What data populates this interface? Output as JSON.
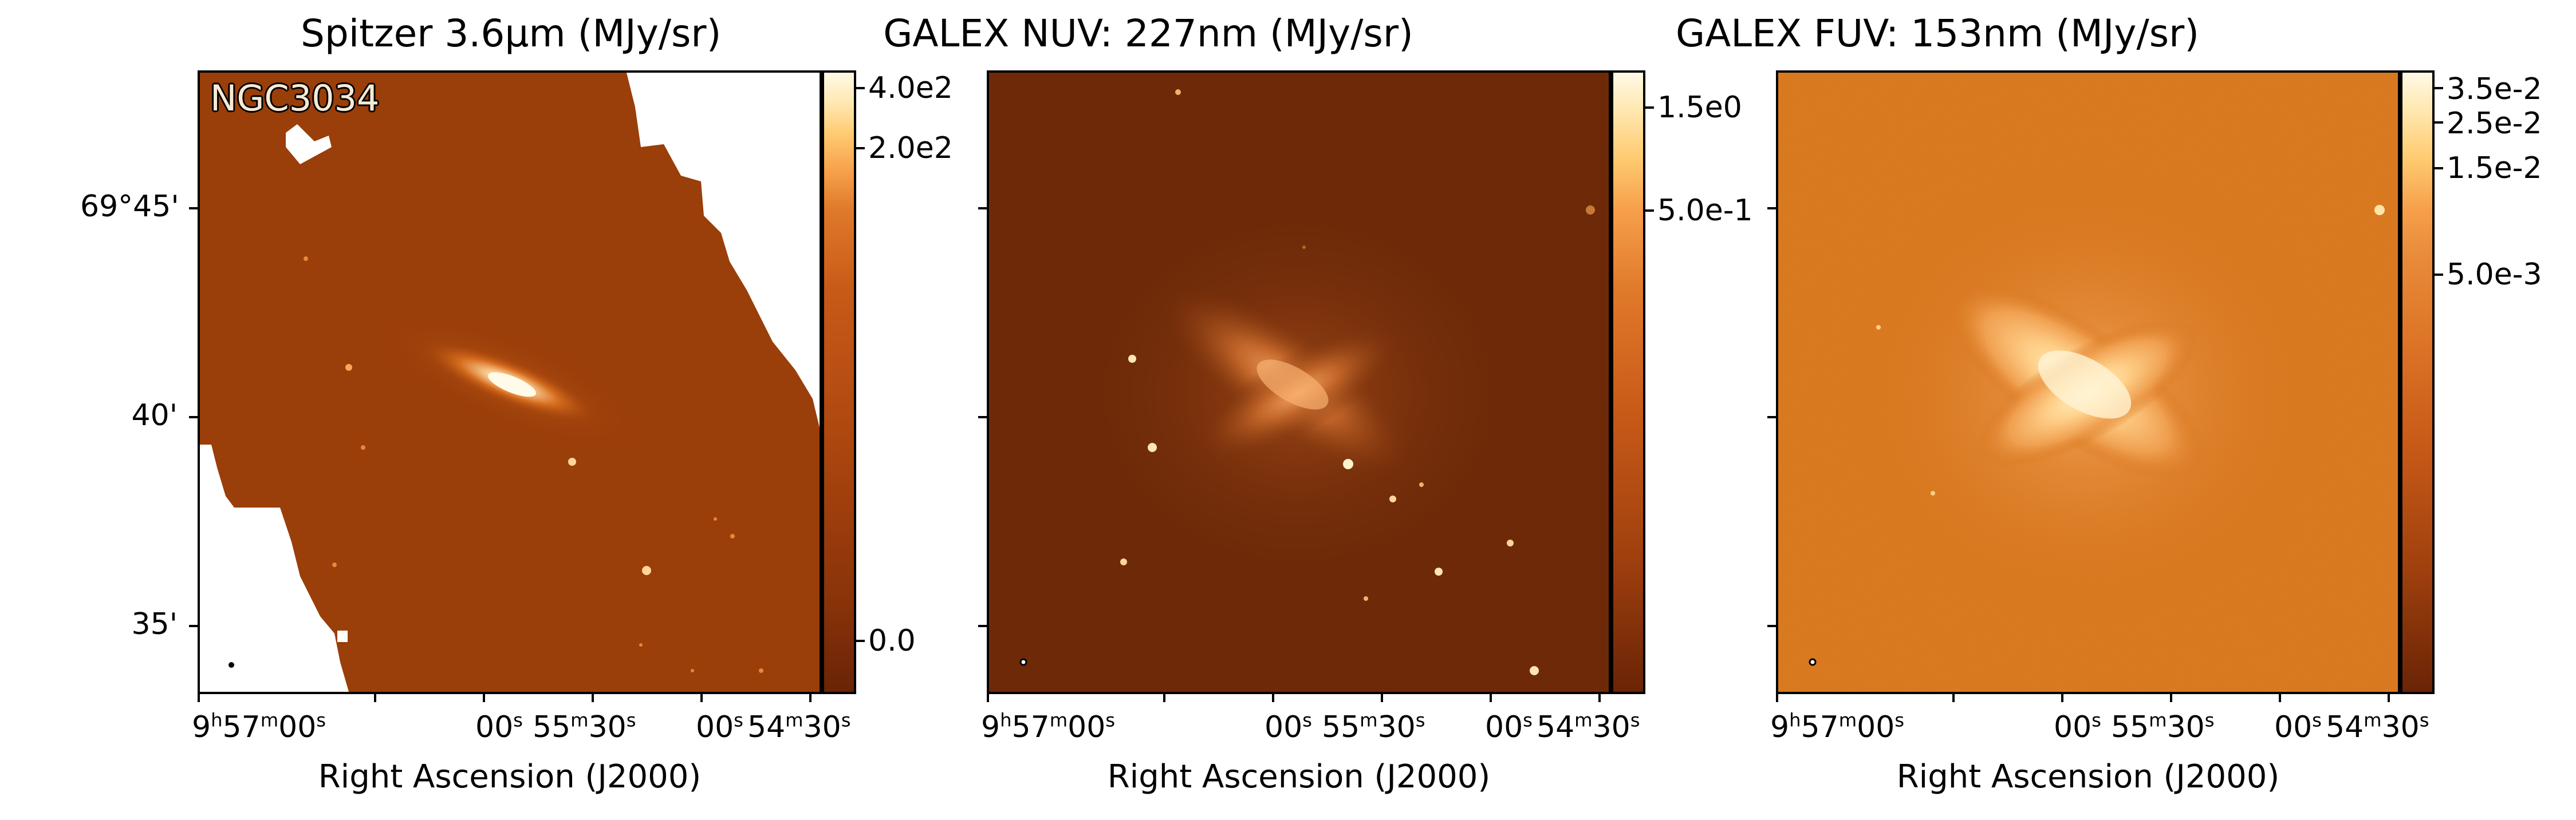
{
  "object_name": "NGC3034",
  "panels": [
    {
      "title": "Spitzer 3.6μm (MJy/sr)",
      "colorbar_ticks": [
        "4.0e2",
        "2.0e2",
        "0.0"
      ],
      "colorbar_tick_fractions_from_top": [
        0.03,
        0.125,
        0.915
      ],
      "y_ticks": [
        "69°45'",
        "40'",
        "35'"
      ],
      "colors": {
        "dark": "#6b2a09",
        "mid": "#9a3e0a",
        "bright": "#fff6d8",
        "background": "#9a3e0a"
      }
    },
    {
      "title": "GALEX NUV: 227nm (MJy/sr)",
      "colorbar_ticks": [
        "1.5e0",
        "5.0e-1"
      ],
      "colorbar_tick_fractions_from_top": [
        0.06,
        0.225
      ],
      "y_ticks": [],
      "colors": {
        "dark": "#5a2007",
        "mid": "#8a360a",
        "bright": "#fff6d8",
        "background": "#7a300a"
      }
    },
    {
      "title": "GALEX FUV: 153nm (MJy/sr)",
      "colorbar_ticks": [
        "3.5e-2",
        "2.5e-2",
        "1.5e-2",
        "5.0e-3"
      ],
      "colorbar_tick_fractions_from_top": [
        0.03,
        0.083,
        0.155,
        0.325
      ],
      "y_ticks": [],
      "colors": {
        "dark": "#5a2007",
        "mid": "#d16a14",
        "bright": "#fff6d8",
        "background": "#d46e16"
      }
    }
  ],
  "x_axis": {
    "label": "Right Ascension (J2000)",
    "ticks": [
      "9h57m00s",
      "00s",
      "55m30s",
      "00s",
      "54m30s"
    ]
  },
  "y_axis": {
    "label": ""
  }
}
